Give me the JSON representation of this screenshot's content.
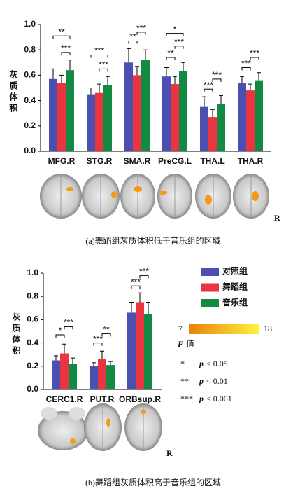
{
  "chart_data": [
    {
      "type": "bar",
      "y_label": "灰质体积",
      "caption": "(a)舞蹈组灰质体积低于音乐组的区域",
      "side_label": "R",
      "categories": [
        "MFG.R",
        "STG.R",
        "SMA.R",
        "PreCG.L",
        "THA.L",
        "THA.R"
      ],
      "series": [
        {
          "color": "#4a4fb0",
          "values": [
            0.57,
            0.45,
            0.7,
            0.59,
            0.35,
            0.54
          ],
          "errors": [
            0.08,
            0.05,
            0.11,
            0.07,
            0.08,
            0.05
          ]
        },
        {
          "color": "#e8353f",
          "values": [
            0.54,
            0.46,
            0.6,
            0.53,
            0.27,
            0.48
          ],
          "errors": [
            0.06,
            0.07,
            0.07,
            0.06,
            0.06,
            0.05
          ]
        },
        {
          "color": "#138a43",
          "values": [
            0.64,
            0.52,
            0.72,
            0.63,
            0.37,
            0.56
          ],
          "errors": [
            0.08,
            0.07,
            0.08,
            0.07,
            0.07,
            0.06
          ]
        }
      ],
      "annotations": [
        "**",
        "***",
        "***",
        "***",
        "**",
        "***",
        "*",
        "***",
        "**",
        "***",
        "***",
        "***",
        "***"
      ],
      "ylim": [
        0,
        1
      ],
      "yticks": [
        {
          "value": 0,
          "label": "0.0"
        },
        0.2,
        0.4,
        0.6,
        0.8,
        {
          "value": 1,
          "label": "1.0"
        }
      ]
    },
    {
      "type": "bar",
      "y_label": "灰质体积",
      "caption": "(b)舞蹈组灰质体积高于音乐组的区域",
      "side_label": "R",
      "categories": [
        "CERC1.R",
        "PUT.R",
        "ORBsup.R"
      ],
      "series": [
        {
          "name": "对照组",
          "color": "#4a4fb0",
          "values": [
            0.25,
            0.2,
            0.66
          ],
          "errors": [
            0.04,
            0.03,
            0.09
          ]
        },
        {
          "name": "舞蹈组",
          "color": "#e8353f",
          "values": [
            0.31,
            0.26,
            0.75
          ],
          "errors": [
            0.08,
            0.07,
            0.08
          ]
        },
        {
          "name": "音乐组",
          "color": "#138a43",
          "values": [
            0.22,
            0.21,
            0.65
          ],
          "errors": [
            0.05,
            0.03,
            0.1
          ]
        }
      ],
      "annotations": [
        "*",
        "***",
        "***",
        "**",
        "***",
        "***"
      ],
      "ylim": [
        0,
        1
      ],
      "yticks": [
        {
          "value": 0,
          "label": "0.0"
        },
        0.2,
        0.4,
        0.6,
        0.8,
        {
          "value": 1,
          "label": "1.0"
        }
      ]
    }
  ],
  "colorbar": {
    "min": 7,
    "max": 18,
    "symbol": "F",
    "label": "值"
  },
  "notes": [
    {
      "stars": "*",
      "symbol": "p",
      "text": "< 0.05"
    },
    {
      "stars": "**",
      "symbol": "p",
      "text": "< 0.01"
    },
    {
      "stars": "***",
      "symbol": "p",
      "text": "< 0.001"
    }
  ]
}
